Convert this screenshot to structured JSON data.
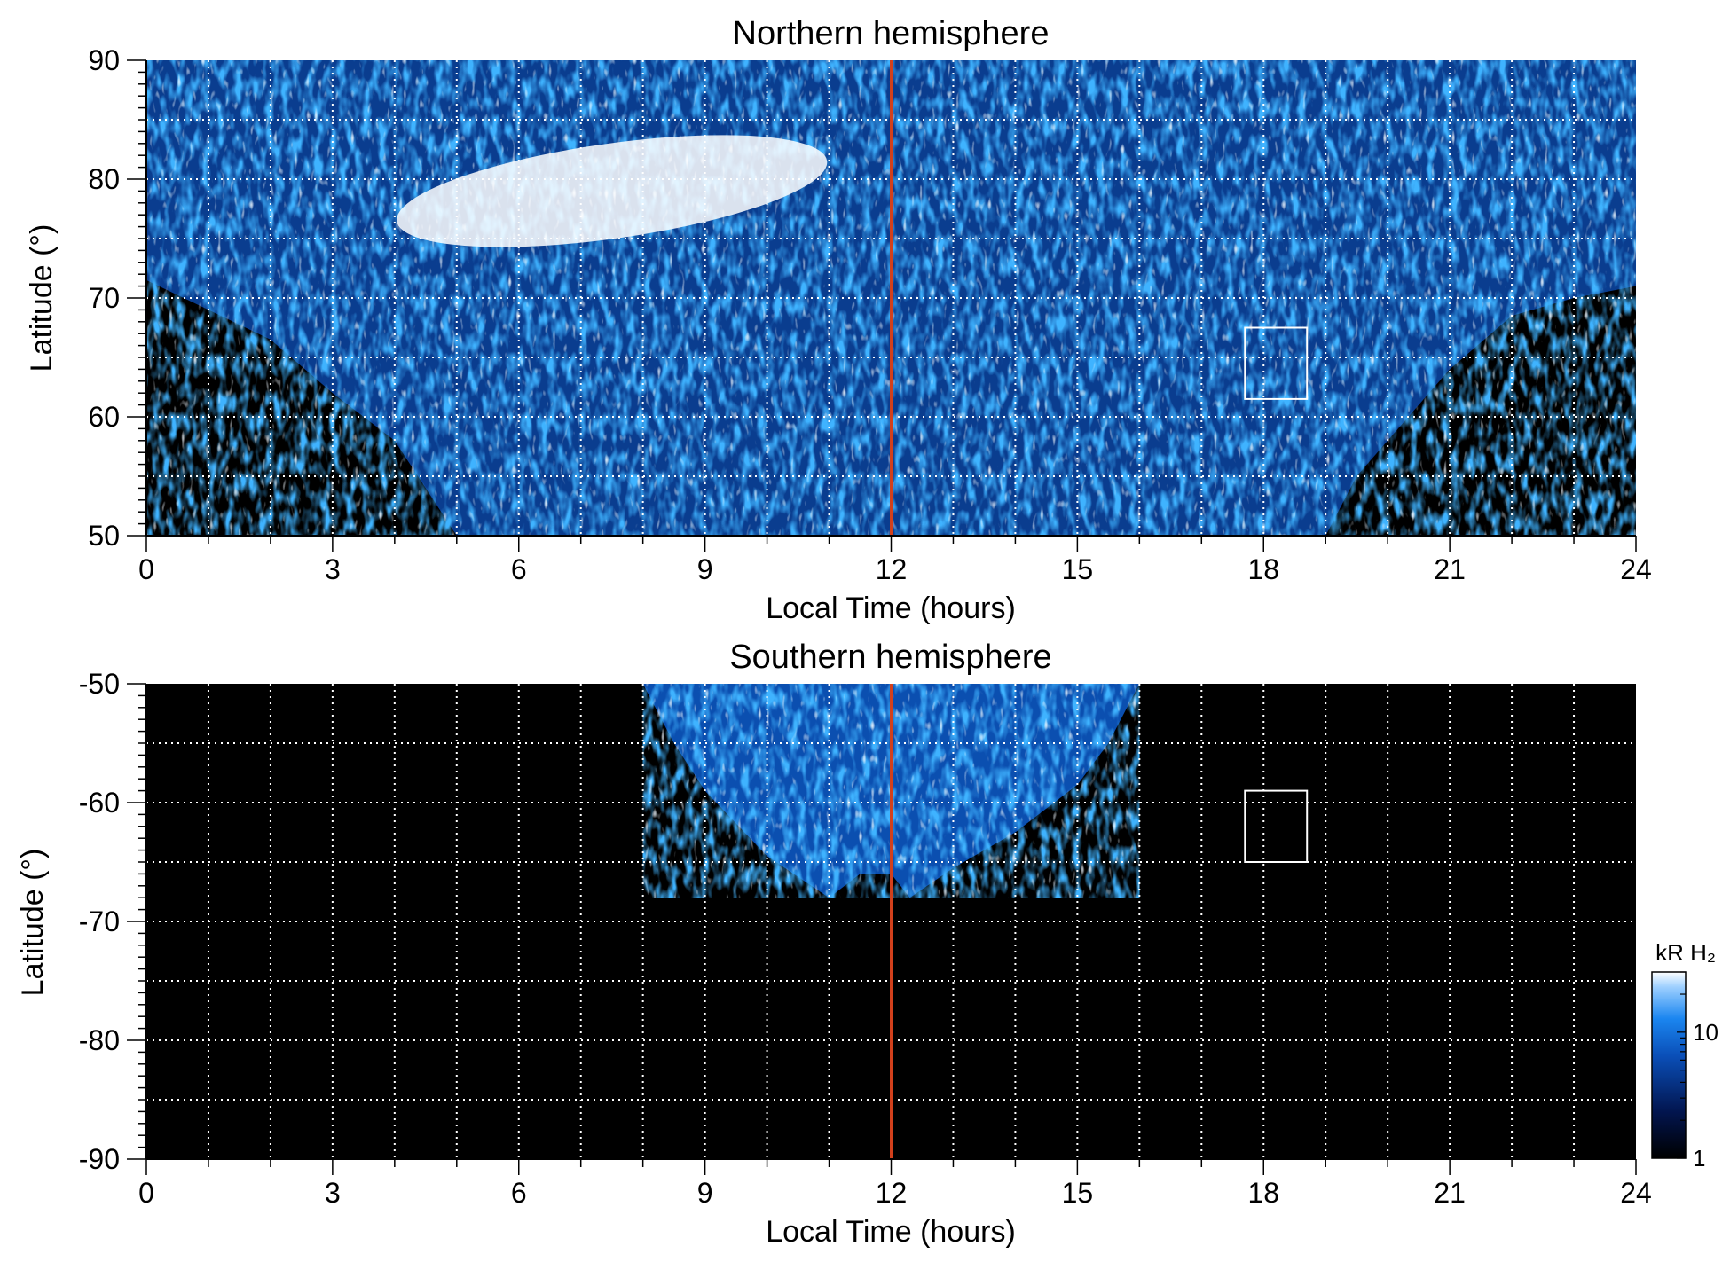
{
  "chart_data": [
    {
      "type": "heatmap",
      "title": "Northern hemisphere",
      "xlabel": "Local Time (hours)",
      "ylabel": "Latitude (°)",
      "xlim": [
        0,
        24
      ],
      "ylim": [
        50,
        90
      ],
      "x_ticks": [
        0,
        3,
        6,
        9,
        12,
        15,
        18,
        21,
        24
      ],
      "y_ticks": [
        50,
        60,
        70,
        80,
        90
      ],
      "grid": true,
      "grid_x_step": 1,
      "grid_y_step": 5,
      "reference_line": {
        "x": 12,
        "color": "#d2401c"
      },
      "box": {
        "x0": 17.7,
        "x1": 18.7,
        "y0": 61.5,
        "y1": 67.5,
        "color": "#ffffff"
      },
      "colors": {
        "background": "#000000",
        "low": "#02154f",
        "mid": "#0a62d6",
        "high": "#ffffff"
      }
    },
    {
      "type": "heatmap",
      "title": "Southern hemisphere",
      "xlabel": "Local Time (hours)",
      "ylabel": "Latitude (°)",
      "xlim": [
        0,
        24
      ],
      "ylim": [
        -90,
        -50
      ],
      "x_ticks": [
        0,
        3,
        6,
        9,
        12,
        15,
        18,
        21,
        24
      ],
      "y_ticks": [
        -50,
        -60,
        -70,
        -80,
        -90
      ],
      "grid": true,
      "grid_x_step": 1,
      "grid_y_step": 5,
      "reference_line": {
        "x": 12,
        "color": "#d2401c"
      },
      "box": {
        "x0": 17.7,
        "x1": 18.7,
        "y0": -65,
        "y1": -59,
        "color": "#ffffff"
      },
      "colors": {
        "background": "#000000",
        "low": "#02154f",
        "mid": "#0a62d6",
        "high": "#ffffff"
      }
    }
  ],
  "colorbar": {
    "label": "kR H₂",
    "scale": "log",
    "range": [
      1,
      30
    ],
    "ticks": [
      1,
      10
    ]
  }
}
